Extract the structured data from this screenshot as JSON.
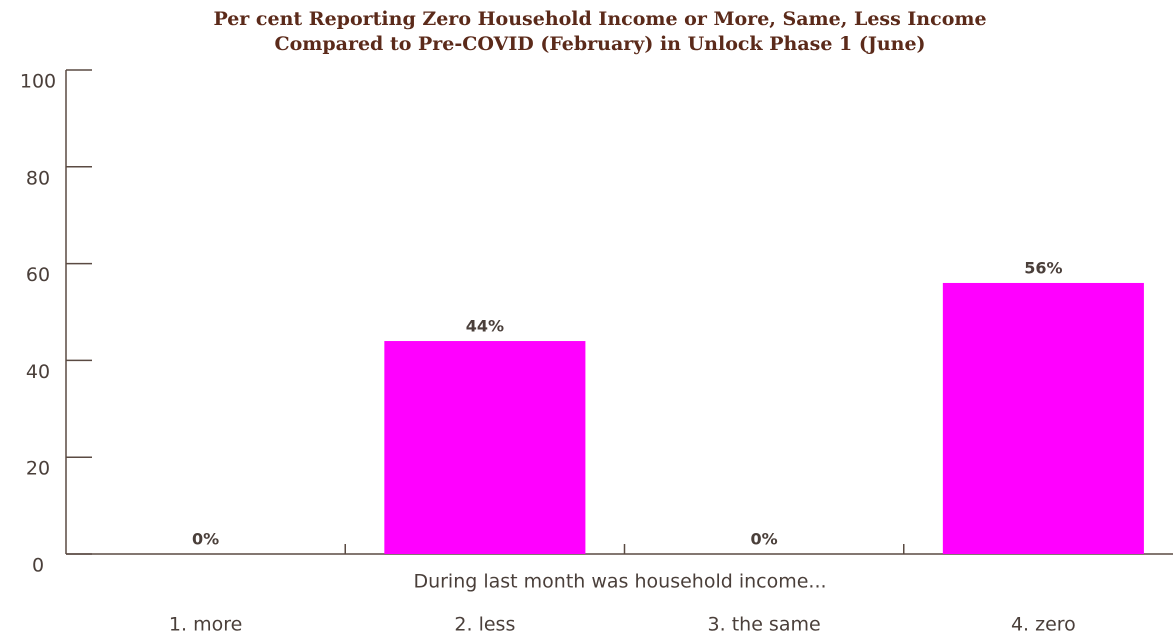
{
  "chart_data": {
    "type": "bar",
    "title": "Per cent Reporting Zero Household Income or More, Same, Less Income",
    "subtitle": "Compared to Pre-COVID (February) in Unlock Phase 1 (June)",
    "x_label": "During last month was household income...",
    "categories": [
      "1. more",
      "2. less",
      "3. the same",
      "4. zero"
    ],
    "values": [
      0,
      44,
      0,
      56
    ],
    "value_labels": [
      "0%",
      "44%",
      "0%",
      "56%"
    ],
    "color": "#ff00ff",
    "ylim": [
      0,
      100
    ],
    "yticks": [
      0,
      20,
      40,
      60,
      80,
      100
    ],
    "grid": false
  }
}
